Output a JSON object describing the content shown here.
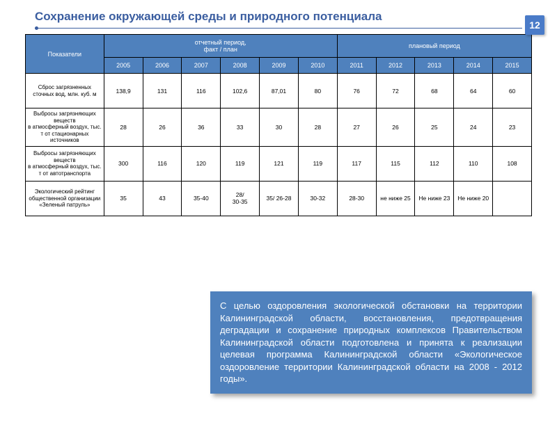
{
  "page_number": "12",
  "title": "Сохранение окружающей среды и природного потенциала",
  "table": {
    "indicator_header": "Показатели",
    "period_fact_header": "отчетный период,\nфакт / план",
    "period_plan_header": "плановый период",
    "years": [
      "2005",
      "2006",
      "2007",
      "2008",
      "2009",
      "2010",
      "2011",
      "2012",
      "2013",
      "2014",
      "2015"
    ],
    "rows": [
      {
        "label": "Сброс загрязненных сточных вод, млн. куб. м",
        "values": [
          "138,9",
          "131",
          "116",
          "102,6",
          "87,01",
          "80",
          "76",
          "72",
          "68",
          "64",
          "60"
        ]
      },
      {
        "label": "Выбросы загрязняющих веществ\nв атмосферный воздух, тыс. т от стационарных источников",
        "values": [
          "28",
          "26",
          "36",
          "33",
          "30",
          "28",
          "27",
          "26",
          "25",
          "24",
          "23"
        ]
      },
      {
        "label": "Выбросы загрязняющих веществ\nв атмосферный воздух, тыс. т от автотранспорта",
        "values": [
          "300",
          "116",
          "120",
          "119",
          "121",
          "119",
          "117",
          "115",
          "112",
          "110",
          "108"
        ]
      },
      {
        "label": "Экологический рейтинг общественной организации «Зеленый патруль»",
        "values": [
          "35",
          "43",
          "35-40",
          "28/\n30-35",
          "35/ 26-28",
          "30-32",
          "28-30",
          "не ниже 25",
          "Не ниже 23",
          "Не ниже 20",
          ""
        ]
      }
    ],
    "header_bg": "#4f81bd",
    "header_fg": "#ffffff",
    "cell_bg": "#ffffff",
    "border_color": "#000000"
  },
  "note": "С целью оздоровления экологической обстановки на территории Калининградской области, восстановления, предотвращения деградации и сохранение природных комплексов Правительством Калининградской области подготовлена и принята к реализации целевая программа Калининградской области «Экологическое оздоровление территории Калининградской области на 2008 - 2012 годы».",
  "note_bg": "#4f81bd",
  "note_fg": "#ffffff",
  "title_color": "#3b5ea0"
}
